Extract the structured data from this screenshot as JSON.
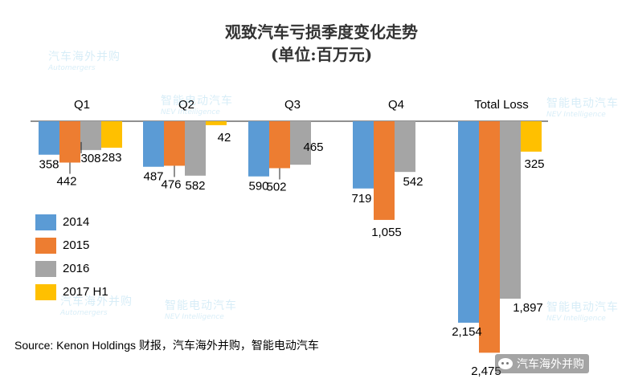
{
  "title": "观致汽车亏损季度变化走势",
  "subtitle": "(单位:百万元)",
  "source": "Source: Kenon Holdings 财报，汽车海外并购，智能电动汽车",
  "brand": "汽车海外并购",
  "watermarks": {
    "a": "汽车海外并购",
    "a_sub": "Automergers",
    "b": "智能电动汽车",
    "b_sub": "NEV Intelligence"
  },
  "colors": {
    "2014": "#5b9bd5",
    "2015": "#ed7d31",
    "2016": "#a5a5a5",
    "2017 H1": "#ffc000"
  },
  "chart_data": {
    "type": "bar",
    "orientation": "vertical-downward",
    "categories": [
      "Q1",
      "Q2",
      "Q3",
      "Q4",
      "Total Loss"
    ],
    "series": [
      {
        "name": "2014",
        "values": [
          358,
          487,
          590,
          719,
          2154
        ],
        "labels": [
          "358",
          "487",
          "590",
          "719",
          "2,154"
        ]
      },
      {
        "name": "2015",
        "values": [
          442,
          476,
          502,
          1055,
          2475
        ],
        "labels": [
          "442",
          "476",
          "502",
          "1,055",
          "2,475"
        ]
      },
      {
        "name": "2016",
        "values": [
          308,
          582,
          465,
          542,
          1897
        ],
        "labels": [
          "308",
          "582",
          "465",
          "542",
          "1,897"
        ]
      },
      {
        "name": "2017 H1",
        "values": [
          283,
          42,
          null,
          null,
          325
        ],
        "labels": [
          "283",
          "42",
          "",
          "",
          "325"
        ]
      }
    ],
    "legend_position": "left",
    "grid": false
  }
}
